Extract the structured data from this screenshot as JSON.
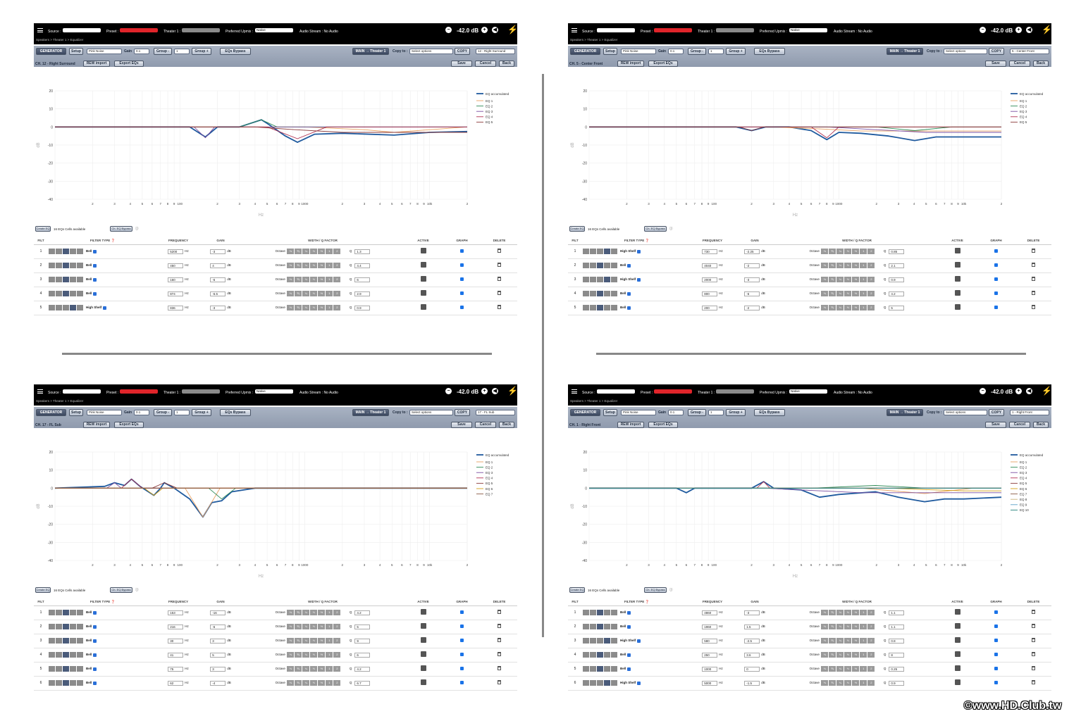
{
  "common": {
    "source_label": "Source :",
    "preset_label": "Preset :",
    "theater_label": "Theater 1 :",
    "upmix_label": "Preferred Upmix :",
    "upmix_value": "Native",
    "audio_stream": "Audio Stream : No Audio",
    "volume": "-42.0 dB",
    "generator": "GENERATOR",
    "setup": "Setup",
    "noise": "Pink Noise",
    "gain_label": "Gain",
    "gain_value": "0.1",
    "group_minus": "Group -",
    "group_value": "1",
    "group_plus": "Group +",
    "eqs_bypass": "EQs Bypass",
    "main_theater": "MAIN → Theater 1",
    "copy_to": "Copy to :",
    "copy_select": "Select options",
    "copy_btn": "COPY",
    "rew_import": "REW import",
    "export_eqs": "Export EQs",
    "save": "Save",
    "cancel": "Cancel",
    "back": "Back",
    "create_eq": "Create EQ",
    "cells_available": "16 EQs Cells available",
    "ch_eq_bypass": "Ch. EQ Bypass",
    "col_filt": "FILT",
    "col_filter_type": "FILTER TYPE",
    "col_frequency": "FREQUENCY",
    "col_gain": "GAIN",
    "col_width": "WIDTH / Q FACTOR",
    "col_active": "ACTIVE",
    "col_graph": "GRAPH",
    "col_delete": "DELETE",
    "hz": "Hz",
    "db": "dB",
    "octave": "Octave",
    "q": "Q",
    "octave_opts": [
      "⅛",
      "⅙",
      "¼",
      "⅓",
      "½",
      "1",
      "2"
    ],
    "legend_acc": "EQ accumulated",
    "x_unit": "Hz",
    "y_unit": "dB",
    "yticks": [
      "20",
      "10",
      "0",
      "-10",
      "-20",
      "-30",
      "-40"
    ],
    "xticks": [
      "2",
      "3",
      "4",
      "5",
      "6",
      "7",
      "8",
      "9",
      "100",
      "2",
      "3",
      "4",
      "5",
      "6",
      "7",
      "8",
      "9",
      "1000",
      "2",
      "3",
      "4",
      "5",
      "6",
      "7",
      "8",
      "9",
      "10k",
      "2"
    ]
  },
  "panels": [
    {
      "breadcrumb": "Speakers >  Theater 1 >  Equalizer",
      "channel_select": "12 - Right Surround",
      "channel": "CH. 12 - Right Surround",
      "rows": [
        {
          "n": "1",
          "type": "Bell",
          "freq": "5200",
          "gain": "-3",
          "q": "1.3"
        },
        {
          "n": "2",
          "type": "Bell",
          "freq": "450",
          "gain": "4",
          "q": "4.4"
        },
        {
          "n": "3",
          "type": "Bell",
          "freq": "160",
          "gain": "-6",
          "q": "6"
        },
        {
          "n": "4",
          "type": "Bell",
          "freq": "874",
          "gain": "-6.5",
          "q": "2.9"
        },
        {
          "n": "5",
          "type": "High Shelf",
          "freq": "836",
          "gain": "-3",
          "q": "0.9"
        }
      ],
      "legend": [
        "EQ 1",
        "EQ 2",
        "EQ 3",
        "EQ 4",
        "EQ 5"
      ]
    },
    {
      "breadcrumb": "Speakers >  Theater 1 >  Equalizer",
      "channel_select": "5 - Center Front",
      "channel": "CH. 5 - Center Front",
      "rows": [
        {
          "n": "1",
          "type": "High Shelf",
          "freq": "730",
          "gain": "-2.25",
          "q": "0.85"
        },
        {
          "n": "2",
          "type": "Bell",
          "freq": "4040",
          "gain": "-2",
          "q": "2.1"
        },
        {
          "n": "3",
          "type": "High Shelf",
          "freq": "2000",
          "gain": "-3",
          "q": "0.9"
        },
        {
          "n": "4",
          "type": "Bell",
          "freq": "800",
          "gain": "-6",
          "q": "4.2"
        },
        {
          "n": "5",
          "type": "Bell",
          "freq": "200",
          "gain": "-2",
          "q": "5"
        }
      ],
      "legend": [
        "EQ 1",
        "EQ 2",
        "EQ 3",
        "EQ 4",
        "EQ 5"
      ]
    },
    {
      "breadcrumb": "Speakers >  Theater 1 >  Equalizer",
      "channel_select": "17 - FL Sub",
      "channel": "CH. 17 - FL Sub",
      "rows": [
        {
          "n": "1",
          "type": "Bell",
          "freq": "153",
          "gain": "-16",
          "q": "4.2"
        },
        {
          "n": "2",
          "type": "Bell",
          "freq": "216",
          "gain": "-6",
          "q": "5"
        },
        {
          "n": "3",
          "type": "Bell",
          "freq": "30",
          "gain": "3",
          "q": "9"
        },
        {
          "n": "4",
          "type": "Bell",
          "freq": "41",
          "gain": "5",
          "q": "6"
        },
        {
          "n": "5",
          "type": "Bell",
          "freq": "75",
          "gain": "3",
          "q": "4.2"
        },
        {
          "n": "6",
          "type": "Bell",
          "freq": "62",
          "gain": "-4",
          "q": "6.7"
        }
      ],
      "legend": [
        "EQ 1",
        "EQ 2",
        "EQ 3",
        "EQ 4",
        "EQ 5",
        "EQ 6",
        "EQ 7"
      ]
    },
    {
      "breadcrumb": "Speakers >  Theater 1 >  Equalizer",
      "channel_select": "1 - Right Front",
      "channel": "CH. 1 - Right Front",
      "rows": [
        {
          "n": "1",
          "type": "Bell",
          "freq": "4860",
          "gain": "-3",
          "q": "1.1"
        },
        {
          "n": "2",
          "type": "Bell",
          "freq": "1960",
          "gain": "1.5",
          "q": "1.1"
        },
        {
          "n": "3",
          "type": "High Shelf",
          "freq": "580",
          "gain": "-2.5",
          "q": "0.8"
        },
        {
          "n": "4",
          "type": "Bell",
          "freq": "250",
          "gain": "3.6",
          "q": "8"
        },
        {
          "n": "5",
          "type": "Bell",
          "freq": "1000",
          "gain": "0",
          "q": "0.25"
        },
        {
          "n": "6",
          "type": "High Shelf",
          "freq": "5000",
          "gain": "-1.5",
          "q": "0.9"
        }
      ],
      "legend": [
        "EQ 1",
        "EQ 2",
        "EQ 3",
        "EQ 4",
        "EQ 5",
        "EQ 6",
        "EQ 7",
        "EQ 8",
        "EQ 9",
        "EQ 10"
      ]
    }
  ],
  "chart_data": [
    {
      "type": "line",
      "xscale": "log",
      "xlim": [
        10,
        20000
      ],
      "ylim": [
        -40,
        20
      ],
      "xlabel": "Hz",
      "ylabel": "dB",
      "series": [
        {
          "name": "EQ accumulated",
          "x": [
            10,
            120,
            160,
            200,
            300,
            450,
            500,
            700,
            874,
            1200,
            2000,
            5200,
            10000,
            20000
          ],
          "y": [
            0,
            0,
            -5.5,
            0,
            0,
            4,
            2,
            -5,
            -8.5,
            -4,
            -3.5,
            -4.5,
            -3,
            -2.5
          ]
        },
        {
          "name": "EQ 1",
          "x": [
            10,
            1000,
            3000,
            5200,
            10000,
            20000
          ],
          "y": [
            0,
            0,
            -1.5,
            -3,
            -1.5,
            0
          ]
        },
        {
          "name": "EQ 2",
          "x": [
            10,
            300,
            450,
            600,
            20000
          ],
          "y": [
            0,
            0,
            4,
            0,
            0
          ]
        },
        {
          "name": "EQ 3",
          "x": [
            10,
            130,
            160,
            190,
            20000
          ],
          "y": [
            0,
            0,
            -6,
            0,
            0
          ]
        },
        {
          "name": "EQ 4",
          "x": [
            10,
            500,
            874,
            1500,
            20000
          ],
          "y": [
            0,
            0,
            -6.5,
            0,
            0
          ]
        },
        {
          "name": "EQ 5",
          "x": [
            10,
            400,
            836,
            2000,
            20000
          ],
          "y": [
            0,
            0,
            -1.5,
            -3,
            -3
          ]
        }
      ]
    },
    {
      "type": "line",
      "xscale": "log",
      "xlim": [
        10,
        20000
      ],
      "ylim": [
        -40,
        20
      ],
      "xlabel": "Hz",
      "ylabel": "dB",
      "series": [
        {
          "name": "EQ accumulated",
          "x": [
            10,
            150,
            200,
            260,
            400,
            600,
            800,
            1000,
            1500,
            2500,
            4040,
            6000,
            10000,
            20000
          ],
          "y": [
            0,
            0,
            -2,
            0,
            0,
            -2,
            -7,
            -3,
            -3.5,
            -5,
            -7.5,
            -5.5,
            -5.5,
            -5.5
          ]
        },
        {
          "name": "EQ 1",
          "x": [
            10,
            300,
            730,
            1500,
            20000
          ],
          "y": [
            0,
            0,
            -1.1,
            -2.25,
            -2.25
          ]
        },
        {
          "name": "EQ 2",
          "x": [
            10,
            2000,
            4040,
            8000,
            20000
          ],
          "y": [
            0,
            0,
            -2,
            0,
            0
          ]
        },
        {
          "name": "EQ 3",
          "x": [
            10,
            800,
            2000,
            5000,
            20000
          ],
          "y": [
            0,
            0,
            -1.5,
            -3,
            -3
          ]
        },
        {
          "name": "EQ 4",
          "x": [
            10,
            600,
            800,
            1000,
            20000
          ],
          "y": [
            0,
            0,
            -6,
            0,
            0
          ]
        },
        {
          "name": "EQ 5",
          "x": [
            10,
            160,
            200,
            250,
            20000
          ],
          "y": [
            0,
            0,
            -2,
            0,
            0
          ]
        }
      ]
    },
    {
      "type": "line",
      "xscale": "log",
      "xlim": [
        10,
        20000
      ],
      "ylim": [
        -40,
        20
      ],
      "xlabel": "Hz",
      "ylabel": "dB",
      "series": [
        {
          "name": "EQ accumulated",
          "x": [
            10,
            25,
            30,
            36,
            41,
            48,
            62,
            70,
            75,
            90,
            120,
            153,
            180,
            216,
            260,
            400,
            20000
          ],
          "y": [
            0,
            1,
            3,
            1.5,
            5,
            1,
            -4,
            0,
            3,
            0,
            -6,
            -16,
            -8,
            -7,
            -2,
            0,
            0
          ]
        },
        {
          "name": "EQ 1",
          "x": [
            10,
            110,
            153,
            210,
            20000
          ],
          "y": [
            0,
            0,
            -16,
            0,
            0
          ]
        },
        {
          "name": "EQ 2",
          "x": [
            10,
            170,
            216,
            280,
            20000
          ],
          "y": [
            0,
            0,
            -6,
            0,
            0
          ]
        },
        {
          "name": "EQ 3",
          "x": [
            10,
            26,
            30,
            34,
            20000
          ],
          "y": [
            0,
            0,
            3,
            0,
            0
          ]
        },
        {
          "name": "EQ 4",
          "x": [
            10,
            34,
            41,
            50,
            20000
          ],
          "y": [
            0,
            0,
            5,
            0,
            0
          ]
        },
        {
          "name": "EQ 5",
          "x": [
            10,
            60,
            75,
            95,
            20000
          ],
          "y": [
            0,
            0,
            3,
            0,
            0
          ]
        },
        {
          "name": "EQ 6",
          "x": [
            10,
            52,
            62,
            73,
            20000
          ],
          "y": [
            0,
            0,
            -4,
            0,
            0
          ]
        },
        {
          "name": "EQ 7",
          "x": [
            10,
            20000
          ],
          "y": [
            0,
            0
          ]
        }
      ]
    },
    {
      "type": "line",
      "xscale": "log",
      "xlim": [
        10,
        20000
      ],
      "ylim": [
        -40,
        20
      ],
      "xlabel": "Hz",
      "ylabel": "dB",
      "series": [
        {
          "name": "EQ accumulated",
          "x": [
            10,
            50,
            60,
            70,
            200,
            250,
            300,
            500,
            700,
            1000,
            1960,
            3000,
            4860,
            7000,
            10000,
            20000
          ],
          "y": [
            0,
            0,
            -2.5,
            0,
            0,
            3.6,
            0,
            -1,
            -5,
            -3.5,
            -2,
            -5,
            -7.5,
            -6,
            -6,
            -5
          ]
        },
        {
          "name": "EQ 1",
          "x": [
            10,
            1500,
            4860,
            12000,
            20000
          ],
          "y": [
            0,
            0,
            -3,
            0,
            0
          ]
        },
        {
          "name": "EQ 2",
          "x": [
            10,
            600,
            1960,
            5000,
            20000
          ],
          "y": [
            0,
            0,
            1.5,
            0,
            0
          ]
        },
        {
          "name": "EQ 3",
          "x": [
            10,
            250,
            580,
            1500,
            20000
          ],
          "y": [
            0,
            0,
            -1.2,
            -2.5,
            -2.5
          ]
        },
        {
          "name": "EQ 4",
          "x": [
            10,
            220,
            250,
            280,
            20000
          ],
          "y": [
            0,
            0,
            3.6,
            0,
            0
          ]
        },
        {
          "name": "EQ 5",
          "x": [
            10,
            20000
          ],
          "y": [
            0,
            0
          ]
        },
        {
          "name": "EQ 6",
          "x": [
            10,
            2500,
            5000,
            10000,
            20000
          ],
          "y": [
            0,
            0,
            -0.8,
            -1.5,
            -1.5
          ]
        },
        {
          "name": "EQ 7",
          "x": [
            10,
            20000
          ],
          "y": [
            0,
            0
          ]
        },
        {
          "name": "EQ 8",
          "x": [
            10,
            20000
          ],
          "y": [
            0,
            0
          ]
        },
        {
          "name": "EQ 9",
          "x": [
            10,
            20000
          ],
          "y": [
            0,
            0
          ]
        },
        {
          "name": "EQ 10",
          "x": [
            10,
            20000
          ],
          "y": [
            0,
            0
          ]
        }
      ]
    }
  ],
  "colors": {
    "accumulated": "#1f5a9e",
    "eq": [
      "#e8a060",
      "#2e8b57",
      "#7a4fa0",
      "#b03050",
      "#8b3a3a",
      "#d4a017",
      "#8a5a44",
      "#c9b27a",
      "#5aa0c8",
      "#20807a"
    ]
  },
  "watermark": "©www.HD.Club.tw"
}
